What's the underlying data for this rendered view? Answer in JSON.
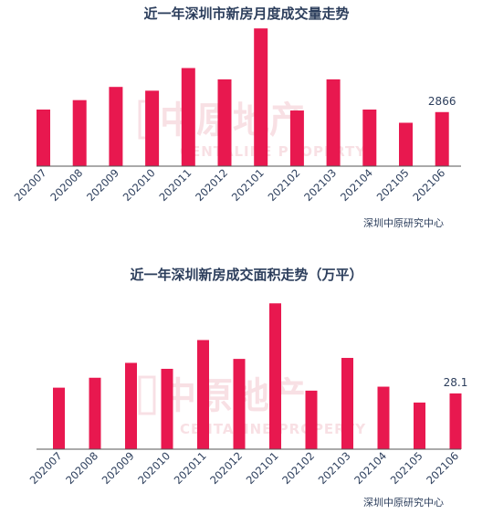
{
  "chart_data": [
    {
      "type": "bar",
      "title": "近一年深圳市新房月度成交量走势",
      "source": "深圳中原研究中心",
      "categories": [
        "202007",
        "202008",
        "202009",
        "202010",
        "202011",
        "202012",
        "202101",
        "202102",
        "202103",
        "202104",
        "202105",
        "202106"
      ],
      "values": [
        3000,
        3500,
        4200,
        4000,
        5200,
        4600,
        7300,
        2950,
        4600,
        3000,
        2300,
        2866
      ],
      "labeled_index": 11,
      "data_label": "2866",
      "ylim": [
        0,
        7500
      ],
      "bar_color": "#e8184f",
      "grid": false
    },
    {
      "type": "bar",
      "title": "近一年深圳新房成交面积走势（万平）",
      "source": "深圳中原研究中心",
      "categories": [
        "202007",
        "202008",
        "202009",
        "202010",
        "202011",
        "202012",
        "202101",
        "202102",
        "202103",
        "202104",
        "202105",
        "202106"
      ],
      "values": [
        31,
        36,
        43.5,
        40.5,
        55,
        45.5,
        73.5,
        29.5,
        46,
        31.5,
        23.5,
        28.1
      ],
      "labeled_index": 11,
      "data_label": "28.1",
      "ylim": [
        0,
        75
      ],
      "bar_color": "#e8184f",
      "grid": false
    }
  ],
  "watermark": {
    "main": "中原地产",
    "sub": "CENTALINE PROPERTY"
  }
}
